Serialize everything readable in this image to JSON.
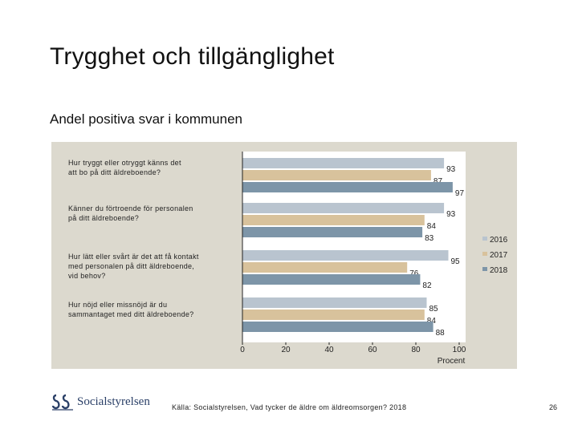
{
  "title": "Trygghet och tillgänglighet",
  "subtitle": "Andel positiva svar i kommunen",
  "chart_data": {
    "type": "bar",
    "orientation": "horizontal",
    "categories": [
      [
        "Hur tryggt eller otryggt känns det",
        "att bo på ditt äldreboende?"
      ],
      [
        "Känner du förtroende för personalen",
        "på ditt äldreboende?"
      ],
      [
        "Hur lätt eller svårt är det att få kontakt",
        "med personalen på ditt äldreboende,",
        "vid behov?"
      ],
      [
        "Hur nöjd eller missnöjd är du",
        "sammantaget med ditt äldreboende?"
      ]
    ],
    "series": [
      {
        "name": "2016",
        "color": "#b9c4cf",
        "values": [
          93,
          93,
          95,
          85
        ]
      },
      {
        "name": "2017",
        "color": "#d8c29c",
        "values": [
          87,
          84,
          76,
          84
        ]
      },
      {
        "name": "2018",
        "color": "#7d95a8",
        "values": [
          97,
          83,
          82,
          88
        ]
      }
    ],
    "xlim": [
      0,
      100
    ],
    "xticks": [
      "0",
      "20",
      "40",
      "60",
      "80",
      "100"
    ],
    "xlabel": "Procent",
    "legend": "right"
  },
  "footer": {
    "logo_text": "Socialstyrelsen",
    "source": "Källa: Socialstyrelsen, Vad tycker de äldre om äldreomsorgen? 2018",
    "page": "26"
  }
}
